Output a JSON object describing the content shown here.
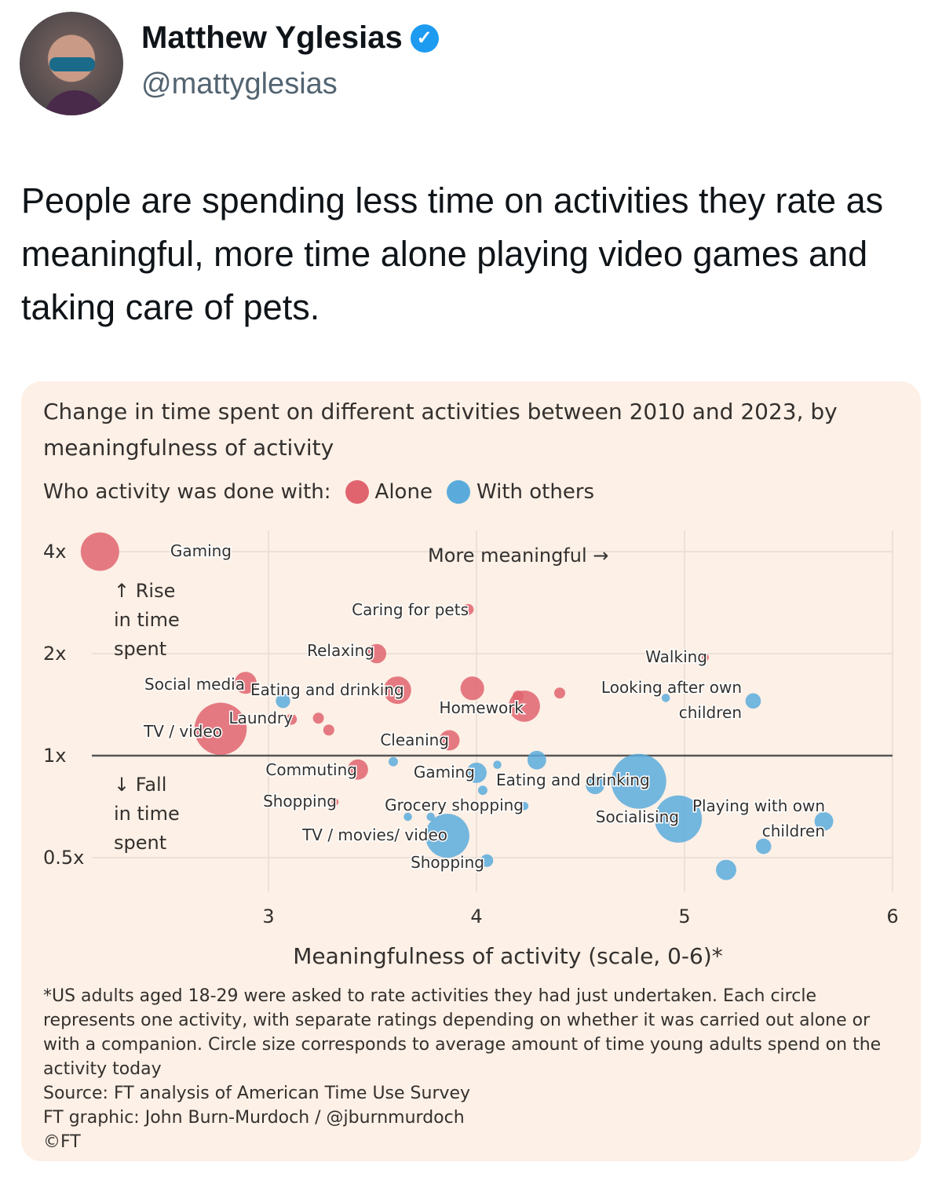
{
  "tweet": {
    "author_name": "Matthew Yglesias",
    "verified_icon": "verified-badge-icon",
    "handle": "@mattyglesias",
    "text": "People are spending less time on activities they rate as meaningful, more time alone playing video games and taking care of pets."
  },
  "card": {
    "title": "Change in time spent on different activities between 2010 and 2023, by meaningfulness of activity",
    "legend_label": "Who activity was done with:",
    "footnote": "*US adults aged 18-29 were asked to rate activities they had just undertaken. Each circle represents one activity, with separate ratings depending on whether it was carried out alone or with a companion. Circle size corresponds to average amount of time young adults spend on the activity today",
    "source": "Source: FT analysis of American Time Use Survey",
    "credit": "FT graphic: John Burn-Murdoch / @jburnmurdoch",
    "copyright": "©FT"
  },
  "chart_data": {
    "type": "scatter",
    "title": "Change in time spent on different activities between 2010 and 2023, by meaningfulness of activity",
    "xlabel": "Meaningfulness of activity (scale, 0-6)*",
    "ylabel": "",
    "xlim": [
      2.1,
      6
    ],
    "ylim": [
      0.42,
      4.4
    ],
    "yscale": "log2",
    "xticks": [
      "3",
      "4",
      "5",
      "6"
    ],
    "yticks": [
      "4x",
      "2x",
      "1x",
      "0.5x"
    ],
    "grid": true,
    "annotations": {
      "more_meaningful": "More meaningful →",
      "rise": [
        "↑ Rise",
        "in time",
        "spent"
      ],
      "fall": [
        "↓ Fall",
        "in time",
        "spent"
      ]
    },
    "series": [
      {
        "name": "Alone",
        "color": "#e0646e",
        "points": [
          {
            "x": 2.19,
            "y": 4.0,
            "size": 7,
            "label": "Gaming"
          },
          {
            "x": 3.96,
            "y": 2.7,
            "size": 2,
            "label": "Caring for pets"
          },
          {
            "x": 3.52,
            "y": 2.0,
            "size": 3.5,
            "label": "Relaxing"
          },
          {
            "x": 2.89,
            "y": 1.64,
            "size": 4,
            "label": "Social media"
          },
          {
            "x": 3.62,
            "y": 1.56,
            "size": 5,
            "label": "Eating and drinking"
          },
          {
            "x": 3.98,
            "y": 1.58,
            "size": 4.3,
            "label": ""
          },
          {
            "x": 4.23,
            "y": 1.4,
            "size": 5.7,
            "label": "Homework"
          },
          {
            "x": 4.2,
            "y": 1.5,
            "size": 2,
            "label": ""
          },
          {
            "x": 4.4,
            "y": 1.53,
            "size": 2,
            "label": ""
          },
          {
            "x": 3.11,
            "y": 1.28,
            "size": 2,
            "label": "Laundry"
          },
          {
            "x": 3.24,
            "y": 1.29,
            "size": 2,
            "label": ""
          },
          {
            "x": 3.29,
            "y": 1.19,
            "size": 2,
            "label": ""
          },
          {
            "x": 2.77,
            "y": 1.2,
            "size": 9.5,
            "label": "TV / video"
          },
          {
            "x": 3.87,
            "y": 1.11,
            "size": 3.7,
            "label": "Cleaning"
          },
          {
            "x": 3.43,
            "y": 0.91,
            "size": 3.7,
            "label": "Commuting"
          },
          {
            "x": 3.32,
            "y": 0.73,
            "size": 1.3,
            "label": "Shopping"
          },
          {
            "x": 5.1,
            "y": 1.95,
            "size": 1.3,
            "label": "Walking"
          }
        ]
      },
      {
        "name": "With others",
        "color": "#5aabdc",
        "points": [
          {
            "x": 3.07,
            "y": 1.45,
            "size": 2.6,
            "label": ""
          },
          {
            "x": 4.91,
            "y": 1.48,
            "size": 1.5,
            "label": ""
          },
          {
            "x": 5.33,
            "y": 1.45,
            "size": 2.8,
            "label": "Looking after own children"
          },
          {
            "x": 3.6,
            "y": 0.96,
            "size": 1.7,
            "label": ""
          },
          {
            "x": 4.0,
            "y": 0.89,
            "size": 3.7,
            "label": "Gaming"
          },
          {
            "x": 4.1,
            "y": 0.94,
            "size": 1.5,
            "label": ""
          },
          {
            "x": 4.29,
            "y": 0.97,
            "size": 3.4,
            "label": ""
          },
          {
            "x": 4.03,
            "y": 0.79,
            "size": 1.7,
            "label": ""
          },
          {
            "x": 4.57,
            "y": 0.82,
            "size": 3.4,
            "label": ""
          },
          {
            "x": 4.78,
            "y": 0.84,
            "size": 10,
            "label": "Eating and drinking"
          },
          {
            "x": 4.23,
            "y": 0.71,
            "size": 1.5,
            "label": "Grocery shopping"
          },
          {
            "x": 3.78,
            "y": 0.66,
            "size": 1.5,
            "label": ""
          },
          {
            "x": 3.67,
            "y": 0.66,
            "size": 1.5,
            "label": ""
          },
          {
            "x": 3.86,
            "y": 0.58,
            "size": 8,
            "label": "TV / movies/ video"
          },
          {
            "x": 4.05,
            "y": 0.49,
            "size": 2.3,
            "label": "Shopping"
          },
          {
            "x": 4.97,
            "y": 0.65,
            "size": 8.6,
            "label": "Socialising"
          },
          {
            "x": 5.67,
            "y": 0.64,
            "size": 3.4,
            "label": "Playing with own children"
          },
          {
            "x": 5.38,
            "y": 0.54,
            "size": 2.8,
            "label": ""
          },
          {
            "x": 5.2,
            "y": 0.46,
            "size": 3.7,
            "label": ""
          }
        ]
      }
    ]
  }
}
